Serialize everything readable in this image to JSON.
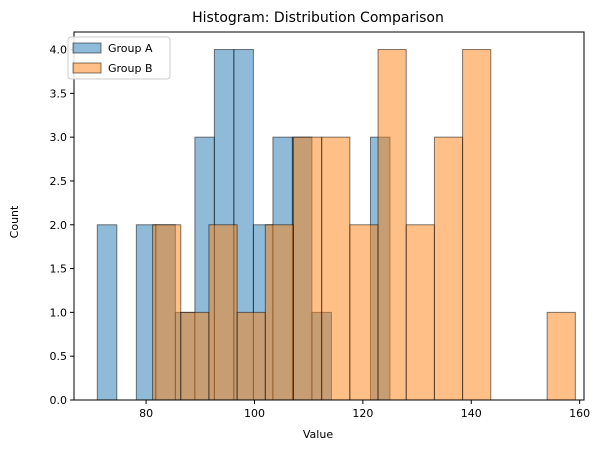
{
  "chart_data": {
    "type": "histogram",
    "title": "Histogram: Distribution Comparison",
    "xlabel": "Value",
    "ylabel": "Count",
    "xlim": [
      66.7,
      160.8
    ],
    "ylim": [
      0,
      4.2
    ],
    "xticks": [
      80,
      100,
      120,
      140,
      160
    ],
    "yticks": [
      0.0,
      0.5,
      1.0,
      1.5,
      2.0,
      2.5,
      3.0,
      3.5,
      4.0
    ],
    "grid": false,
    "legend_position": "top-left",
    "series": [
      {
        "name": "Group A",
        "color": "#1f77b4",
        "alpha": 0.5,
        "bins": [
          {
            "x0": 71.0,
            "x1": 74.6,
            "count": 2
          },
          {
            "x0": 78.2,
            "x1": 81.8,
            "count": 2
          },
          {
            "x0": 81.8,
            "x1": 85.4,
            "count": 2
          },
          {
            "x0": 85.4,
            "x1": 89.0,
            "count": 1
          },
          {
            "x0": 89.0,
            "x1": 92.6,
            "count": 3
          },
          {
            "x0": 92.6,
            "x1": 96.2,
            "count": 4
          },
          {
            "x0": 96.2,
            "x1": 99.8,
            "count": 4
          },
          {
            "x0": 99.8,
            "x1": 103.4,
            "count": 2
          },
          {
            "x0": 103.4,
            "x1": 107.0,
            "count": 3
          },
          {
            "x0": 107.0,
            "x1": 110.6,
            "count": 3
          },
          {
            "x0": 110.6,
            "x1": 114.2,
            "count": 1
          },
          {
            "x0": 121.4,
            "x1": 125.0,
            "count": 3
          }
        ]
      },
      {
        "name": "Group B",
        "color": "#ff7f0e",
        "alpha": 0.5,
        "bins": [
          {
            "x0": 81.2,
            "x1": 86.4,
            "count": 2
          },
          {
            "x0": 86.4,
            "x1": 91.6,
            "count": 1
          },
          {
            "x0": 91.6,
            "x1": 96.8,
            "count": 2
          },
          {
            "x0": 96.8,
            "x1": 102.0,
            "count": 1
          },
          {
            "x0": 102.0,
            "x1": 107.2,
            "count": 2
          },
          {
            "x0": 107.2,
            "x1": 112.4,
            "count": 3
          },
          {
            "x0": 112.4,
            "x1": 117.6,
            "count": 3
          },
          {
            "x0": 117.6,
            "x1": 122.8,
            "count": 2
          },
          {
            "x0": 122.8,
            "x1": 128.0,
            "count": 4
          },
          {
            "x0": 128.0,
            "x1": 133.2,
            "count": 2
          },
          {
            "x0": 133.2,
            "x1": 138.4,
            "count": 3
          },
          {
            "x0": 138.4,
            "x1": 143.6,
            "count": 4
          },
          {
            "x0": 154.0,
            "x1": 159.2,
            "count": 1
          }
        ]
      }
    ]
  }
}
